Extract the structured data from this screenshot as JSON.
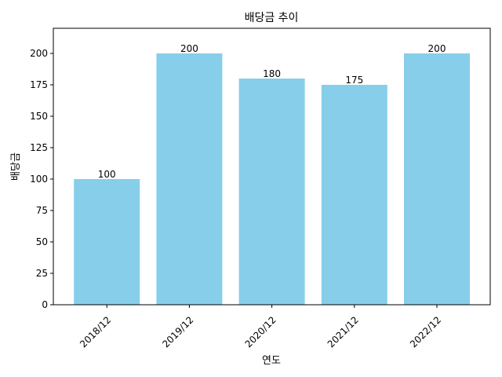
{
  "chart_data": {
    "type": "bar",
    "title": "배당금 추이",
    "xlabel": "연도",
    "ylabel": "배당금",
    "categories": [
      "2018/12",
      "2019/12",
      "2020/12",
      "2021/12",
      "2022/12"
    ],
    "values": [
      100,
      200,
      180,
      175,
      200
    ],
    "data_labels": [
      "100",
      "200",
      "180",
      "175",
      "200"
    ],
    "ylim": [
      0,
      220
    ],
    "yticks": [
      0,
      25,
      50,
      75,
      100,
      125,
      150,
      175,
      200
    ],
    "bar_color": "#87ceeb",
    "grid": false,
    "legend": "none"
  }
}
